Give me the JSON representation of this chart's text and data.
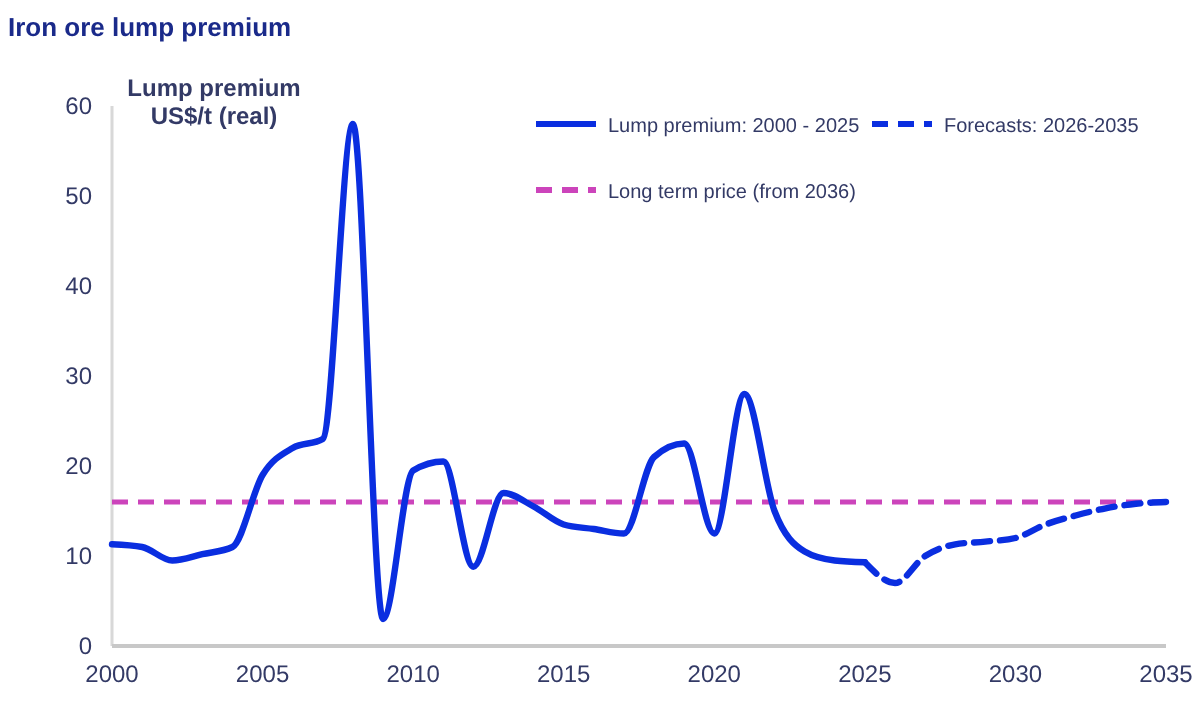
{
  "chart_data": {
    "type": "line",
    "title": "Iron ore lump premium",
    "ylabel": "Lump premium\nUS$/t (real)",
    "xlim": [
      2000,
      2035
    ],
    "xticks": [
      2000,
      2005,
      2010,
      2015,
      2020,
      2025,
      2030,
      2035
    ],
    "ylim": [
      0,
      60
    ],
    "yticks": [
      0,
      10,
      20,
      30,
      40,
      50,
      60
    ],
    "grid": false,
    "legend": "top right",
    "series": [
      {
        "name": "Lump premium: 2000 - 2025",
        "color": "#0a2ee0",
        "line_style": "solid",
        "x": [
          2000,
          2001,
          2002,
          2003,
          2004,
          2005,
          2006,
          2007,
          2008,
          2009,
          2010,
          2011,
          2012,
          2013,
          2014,
          2015,
          2016,
          2017,
          2018,
          2019,
          2020,
          2021,
          2022,
          2023,
          2024,
          2025
        ],
        "values": [
          11.3,
          11,
          9.5,
          10.2,
          11,
          19,
          22,
          23,
          58,
          3,
          19.5,
          20.5,
          8.8,
          17,
          15.5,
          13.5,
          13,
          12.5,
          21,
          22.5,
          12.5,
          28,
          15,
          10.5,
          9.5,
          9.3
        ]
      },
      {
        "name": "Forecasts: 2026-2035",
        "color": "#0a2ee0",
        "line_style": "dashed",
        "x": [
          2025,
          2026,
          2027,
          2028,
          2029,
          2030,
          2031,
          2032,
          2033,
          2034,
          2035
        ],
        "values": [
          9.3,
          7,
          10,
          11.3,
          11.6,
          12,
          13.5,
          14.5,
          15.3,
          15.8,
          16
        ]
      }
    ],
    "ref_lines": [
      {
        "axis": "y",
        "value": 16,
        "label": "Long term price (from 2036)",
        "color": "#cc44bb",
        "line_style": "dashed"
      }
    ]
  }
}
